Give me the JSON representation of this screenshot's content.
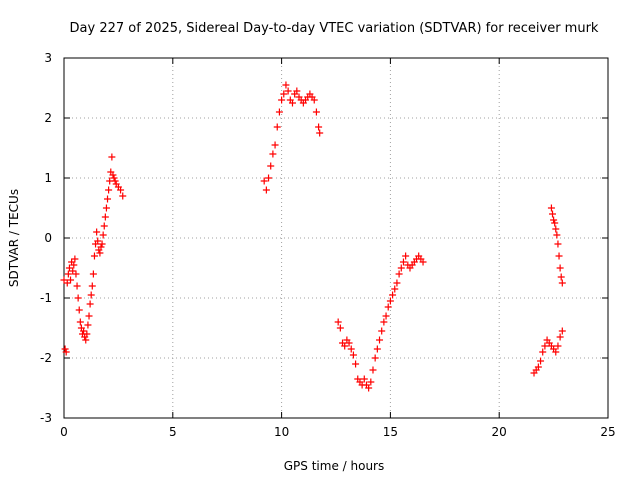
{
  "chart_data": {
    "type": "scatter",
    "title": "Day 227 of 2025, Sidereal Day-to-day VTEC variation (SDTVAR) for receiver murk",
    "xlabel": "GPS time / hours",
    "ylabel": "SDTVAR / TECUs",
    "xlim": [
      0,
      25
    ],
    "ylim": [
      -3,
      3
    ],
    "xticks": [
      0,
      5,
      10,
      15,
      20,
      25
    ],
    "yticks": [
      -3,
      -2,
      -1,
      0,
      1,
      2,
      3
    ],
    "xtick_labels": [
      "0",
      "5",
      "10",
      "15",
      "20",
      "25"
    ],
    "ytick_labels": [
      "-3",
      "-2",
      "-1",
      "0",
      "1",
      "2",
      "3"
    ],
    "grid": true,
    "marker": "+",
    "color": "#ff0000",
    "series": [
      {
        "name": "segment-1",
        "x": [
          0.0,
          0.05,
          0.1,
          0.15,
          0.2,
          0.25,
          0.3,
          0.35,
          0.4,
          0.45,
          0.5,
          0.55,
          0.6,
          0.65,
          0.7,
          0.75,
          0.8,
          0.85,
          0.9,
          0.95,
          1.0,
          1.05,
          1.1,
          1.15,
          1.2,
          1.25,
          1.3,
          1.35,
          1.4,
          1.45,
          1.5,
          1.55,
          1.6,
          1.65,
          1.7,
          1.75,
          1.8,
          1.85,
          1.9,
          1.95,
          2.0,
          2.05,
          2.1,
          2.15,
          2.2,
          2.25,
          2.3,
          2.35,
          2.4,
          2.5,
          2.6,
          2.7
        ],
        "y": [
          -0.7,
          -1.85,
          -1.9,
          -0.75,
          -0.6,
          -0.5,
          -0.7,
          -0.4,
          -0.55,
          -0.45,
          -0.35,
          -0.6,
          -0.8,
          -1.0,
          -1.2,
          -1.4,
          -1.5,
          -1.6,
          -1.55,
          -1.65,
          -1.7,
          -1.6,
          -1.45,
          -1.3,
          -1.1,
          -0.95,
          -0.8,
          -0.6,
          -0.3,
          -0.1,
          0.1,
          -0.05,
          -0.2,
          -0.25,
          -0.15,
          -0.1,
          0.05,
          0.2,
          0.35,
          0.5,
          0.65,
          0.8,
          0.95,
          1.1,
          1.35,
          1.05,
          1.0,
          0.95,
          0.9,
          0.85,
          0.8,
          0.7
        ]
      },
      {
        "name": "segment-2",
        "x": [
          9.2,
          9.3,
          9.4,
          9.5,
          9.6,
          9.7,
          9.8,
          9.9,
          10.0,
          10.1,
          10.2,
          10.3,
          10.4,
          10.5,
          10.6,
          10.7,
          10.8,
          10.9,
          11.0,
          11.1,
          11.2,
          11.3,
          11.4,
          11.5,
          11.6,
          11.7,
          11.75
        ],
        "y": [
          0.95,
          0.8,
          1.0,
          1.2,
          1.4,
          1.55,
          1.85,
          2.1,
          2.3,
          2.4,
          2.55,
          2.45,
          2.3,
          2.25,
          2.4,
          2.45,
          2.35,
          2.3,
          2.25,
          2.3,
          2.35,
          2.4,
          2.35,
          2.3,
          2.1,
          1.85,
          1.75
        ]
      },
      {
        "name": "segment-3",
        "x": [
          12.6,
          12.7,
          12.8,
          12.9,
          13.0,
          13.1,
          13.2,
          13.3,
          13.4,
          13.5,
          13.6,
          13.7,
          13.8,
          13.9,
          14.0,
          14.1,
          14.2,
          14.3,
          14.4,
          14.5,
          14.6,
          14.7,
          14.8,
          14.9,
          15.0,
          15.1,
          15.2,
          15.3,
          15.4,
          15.5,
          15.6,
          15.7,
          15.8,
          15.9,
          16.0,
          16.1,
          16.2,
          16.3,
          16.4,
          16.5
        ],
        "y": [
          -1.4,
          -1.5,
          -1.75,
          -1.8,
          -1.7,
          -1.75,
          -1.85,
          -1.95,
          -2.1,
          -2.35,
          -2.4,
          -2.45,
          -2.35,
          -2.45,
          -2.5,
          -2.4,
          -2.2,
          -2.0,
          -1.85,
          -1.7,
          -1.55,
          -1.4,
          -1.3,
          -1.15,
          -1.05,
          -0.95,
          -0.85,
          -0.75,
          -0.6,
          -0.5,
          -0.4,
          -0.3,
          -0.45,
          -0.5,
          -0.45,
          -0.4,
          -0.35,
          -0.3,
          -0.35,
          -0.4
        ]
      },
      {
        "name": "segment-4",
        "x": [
          21.6,
          21.7,
          21.8,
          21.9,
          22.0,
          22.1,
          22.2,
          22.3,
          22.4,
          22.5,
          22.6,
          22.7,
          22.8,
          22.9
        ],
        "y": [
          -2.25,
          -2.2,
          -2.15,
          -2.05,
          -1.9,
          -1.8,
          -1.7,
          -1.75,
          -1.8,
          -1.85,
          -1.9,
          -1.8,
          -1.65,
          -1.55
        ]
      },
      {
        "name": "segment-5",
        "x": [
          22.4,
          22.45,
          22.5,
          22.55,
          22.6,
          22.65,
          22.7,
          22.75,
          22.8,
          22.85,
          22.9
        ],
        "y": [
          0.5,
          0.4,
          0.3,
          0.25,
          0.15,
          0.05,
          -0.1,
          -0.3,
          -0.5,
          -0.65,
          -0.75
        ]
      }
    ]
  }
}
